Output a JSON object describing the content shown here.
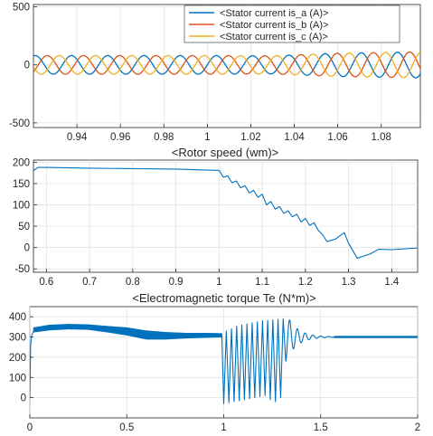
{
  "colors": {
    "blue": "#0072bd",
    "orange": "#d95319",
    "yellow": "#edb120"
  },
  "chart_data": [
    {
      "type": "line",
      "title": "",
      "xlabel": "",
      "ylabel": "",
      "xlim": [
        0.92,
        1.098
      ],
      "ylim": [
        -540,
        520
      ],
      "xticks": [
        0.94,
        0.96,
        0.98,
        1,
        1.02,
        1.04,
        1.06,
        1.08
      ],
      "xtick_labels": [
        "0.94",
        "0.96",
        "0.98",
        "1",
        "1.02",
        "1.04",
        "1.06",
        "1.08"
      ],
      "yticks": [
        -500,
        0,
        500
      ],
      "ytick_labels": [
        "-500",
        "0",
        "500"
      ],
      "grid": true,
      "legend": "top-right",
      "description": "three-phase sinusoidal stator currents, ~60 Hz; amplitude ~80 A before t=1, growing toward ~110 A after t=1",
      "frequency_hz": 60,
      "x": [
        0.92,
        0.96,
        1.0,
        1.03,
        1.06,
        1.098
      ],
      "amplitude": [
        80,
        80,
        80,
        78,
        100,
        112
      ],
      "series": [
        {
          "name": "<Stator current is_a (A)>",
          "phase_deg": 0,
          "color": "#0072bd"
        },
        {
          "name": "<Stator current is_b (A)>",
          "phase_deg": -120,
          "color": "#d95319"
        },
        {
          "name": "<Stator current is_c (A)>",
          "phase_deg": 120,
          "color": "#edb120"
        }
      ]
    },
    {
      "type": "line",
      "title": "<Rotor speed (wm)>",
      "xlabel": "",
      "ylabel": "",
      "xlim": [
        0.57,
        1.46
      ],
      "ylim": [
        -58,
        205
      ],
      "xticks": [
        0.6,
        0.7,
        0.8,
        0.9,
        1,
        1.1,
        1.2,
        1.3,
        1.4
      ],
      "xtick_labels": [
        "0.6",
        "0.7",
        "0.8",
        "0.9",
        "1",
        "1.1",
        "1.2",
        "1.3",
        "1.4"
      ],
      "yticks": [
        -50,
        0,
        50,
        100,
        150,
        200
      ],
      "ytick_labels": [
        "-50",
        "0",
        "50",
        "100",
        "150",
        "200"
      ],
      "grid": true,
      "description": "speed flat near 190 drooping to ~181 at t=1, then stepped decline with ripples to a minimum ~-25 near t=1.32, recovering to ~0",
      "x": [
        0.57,
        0.58,
        0.6,
        0.7,
        0.8,
        0.9,
        0.99,
        1.0,
        1.01,
        1.02,
        1.03,
        1.04,
        1.05,
        1.06,
        1.07,
        1.08,
        1.09,
        1.1,
        1.11,
        1.12,
        1.13,
        1.14,
        1.15,
        1.16,
        1.17,
        1.18,
        1.19,
        1.2,
        1.21,
        1.22,
        1.23,
        1.24,
        1.25,
        1.27,
        1.29,
        1.3,
        1.32,
        1.35,
        1.37,
        1.4,
        1.43,
        1.46
      ],
      "series": [
        {
          "name": "",
          "color": "#0072bd",
          "values": [
            180,
            188,
            188,
            186,
            185,
            184,
            181,
            181,
            165,
            168,
            152,
            156,
            140,
            145,
            128,
            134,
            118,
            125,
            100,
            108,
            90,
            96,
            80,
            86,
            72,
            78,
            60,
            68,
            52,
            58,
            40,
            30,
            14,
            20,
            35,
            10,
            -25,
            -15,
            -4,
            -5,
            -3,
            -1
          ]
        }
      ]
    },
    {
      "type": "line",
      "title": "<Electromagnetic torque Te (N*m)>",
      "xlabel": "",
      "ylabel": "",
      "xlim": [
        0,
        2
      ],
      "ylim": [
        -100,
        450
      ],
      "xticks": [
        0,
        0.5,
        1,
        1.5,
        2
      ],
      "xtick_labels": [
        "0",
        "0.5",
        "1",
        "1.5",
        "2"
      ],
      "yticks": [
        0,
        100,
        200,
        300,
        400
      ],
      "ytick_labels": [
        "0",
        "100",
        "200",
        "300",
        "400"
      ],
      "grid": true,
      "description": "torque rises quickly to a ripple band around 300-360 until t=1, then large oscillations (~-30 to ~390) between t=1 and 1.32, decaying ringing, settling at ~300",
      "envelope": {
        "x": [
          0.02,
          0.1,
          0.2,
          0.3,
          0.4,
          0.5,
          0.6,
          0.7,
          0.8,
          0.9,
          0.99
        ],
        "upper": [
          345,
          358,
          362,
          360,
          352,
          345,
          330,
          322,
          318,
          318,
          316
        ],
        "lower": [
          325,
          335,
          340,
          338,
          325,
          310,
          290,
          290,
          295,
          298,
          300
        ]
      },
      "oscillation_segment": {
        "x": [
          1.0,
          1.32
        ],
        "peaks": [
          330,
          340,
          355,
          360,
          365,
          370,
          375,
          380,
          382,
          385,
          388,
          390
        ],
        "troughs": [
          -30,
          -25,
          -20,
          -15,
          -10,
          -5,
          0,
          5,
          10,
          -10,
          -20,
          0
        ]
      },
      "settled_value": 300,
      "series": [
        {
          "name": "",
          "color": "#0072bd"
        }
      ]
    }
  ]
}
